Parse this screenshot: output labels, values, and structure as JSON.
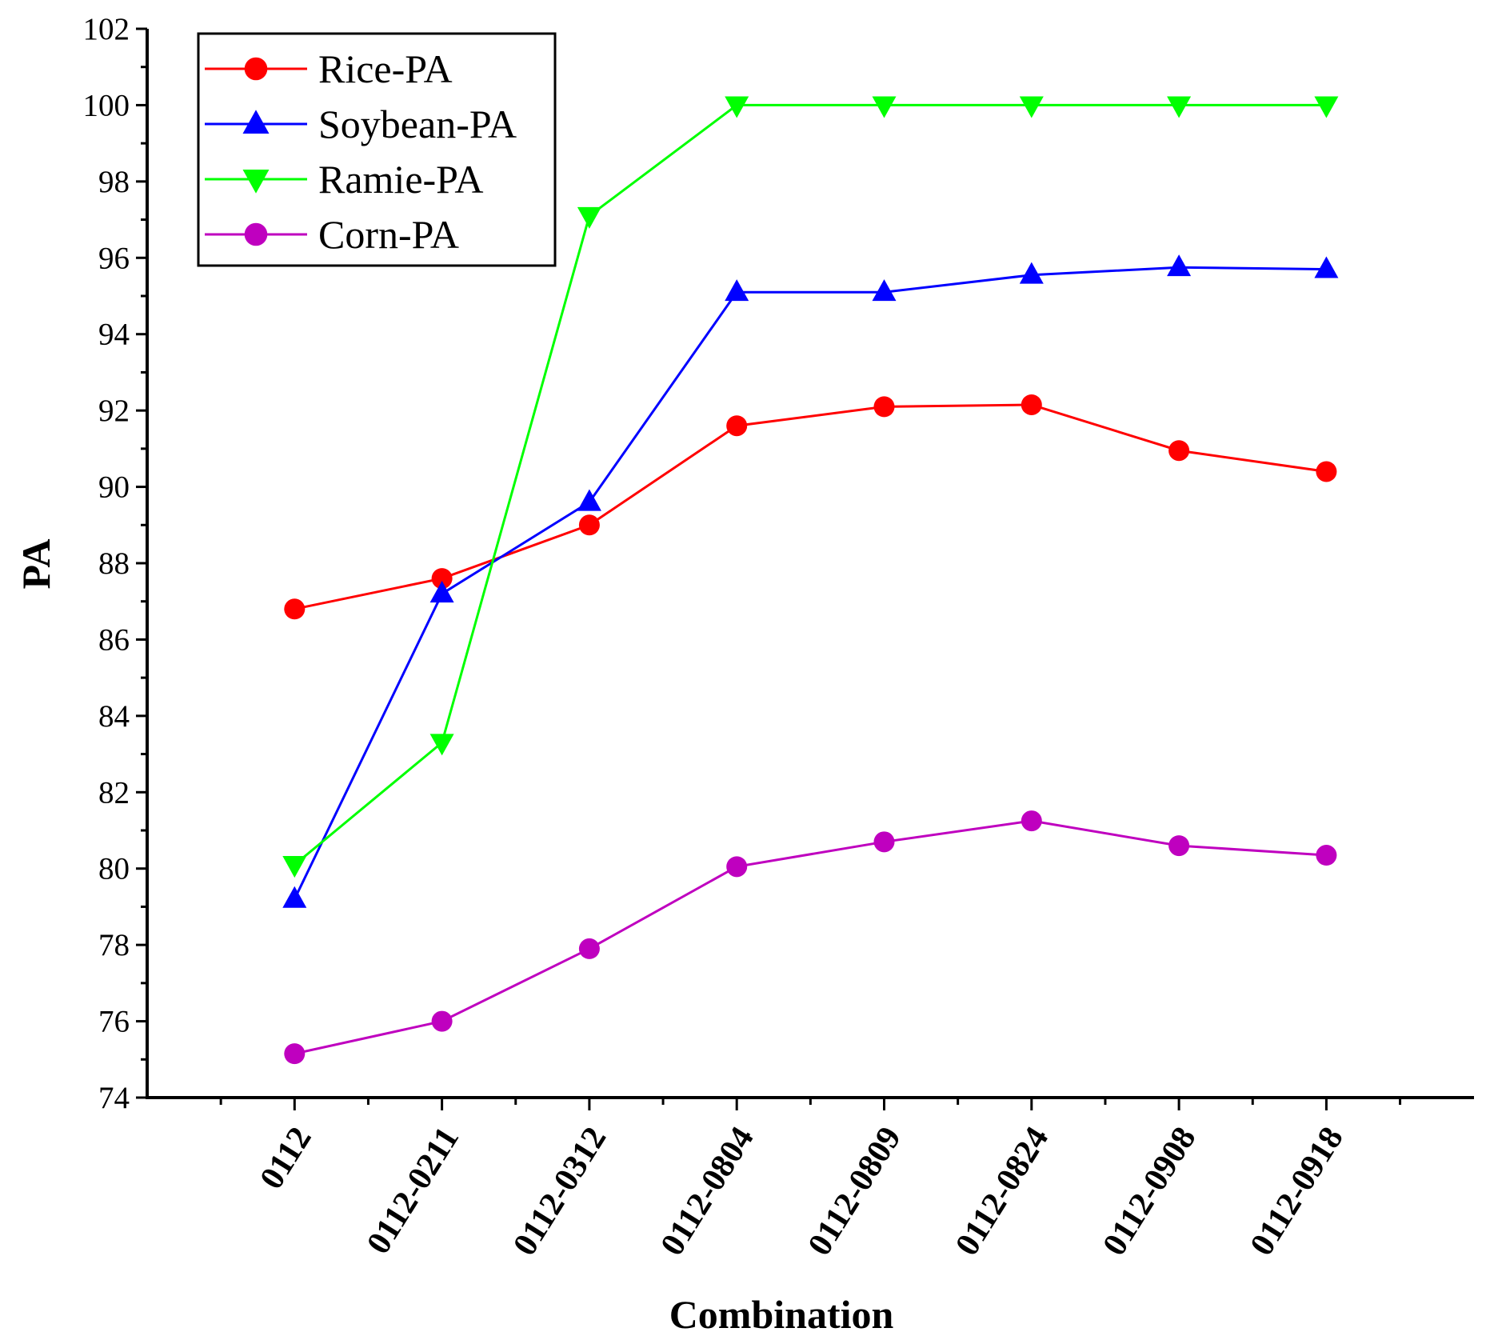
{
  "chart_data": {
    "type": "line",
    "xlabel": "Combination",
    "ylabel": "PA",
    "ylim": [
      74,
      102
    ],
    "yticks": [
      74,
      76,
      78,
      80,
      82,
      84,
      86,
      88,
      90,
      92,
      94,
      96,
      98,
      100,
      102
    ],
    "categories": [
      "0112",
      "0112-0211",
      "0112-0312",
      "0112-0804",
      "0112-0809",
      "0112-0824",
      "0112-0908",
      "0112-0918"
    ],
    "legend_position": "top-left",
    "grid": false,
    "series": [
      {
        "name": "Rice-PA",
        "color": "#ff0000",
        "marker": "circle",
        "values": [
          86.8,
          87.6,
          89.0,
          91.6,
          92.1,
          92.15,
          90.95,
          90.4
        ]
      },
      {
        "name": "Soybean-PA",
        "color": "#0000ff",
        "marker": "triangle-up",
        "values": [
          79.2,
          87.2,
          89.6,
          95.1,
          95.1,
          95.55,
          95.75,
          95.7
        ]
      },
      {
        "name": "Ramie-PA",
        "color": "#00ff00",
        "marker": "triangle-down",
        "values": [
          80.1,
          83.3,
          97.1,
          100.0,
          100.0,
          100.0,
          100.0,
          100.0
        ]
      },
      {
        "name": "Corn-PA",
        "color": "#bf00bf",
        "marker": "circle",
        "values": [
          75.15,
          76.0,
          77.9,
          80.05,
          80.7,
          81.25,
          80.6,
          80.35
        ]
      }
    ]
  }
}
